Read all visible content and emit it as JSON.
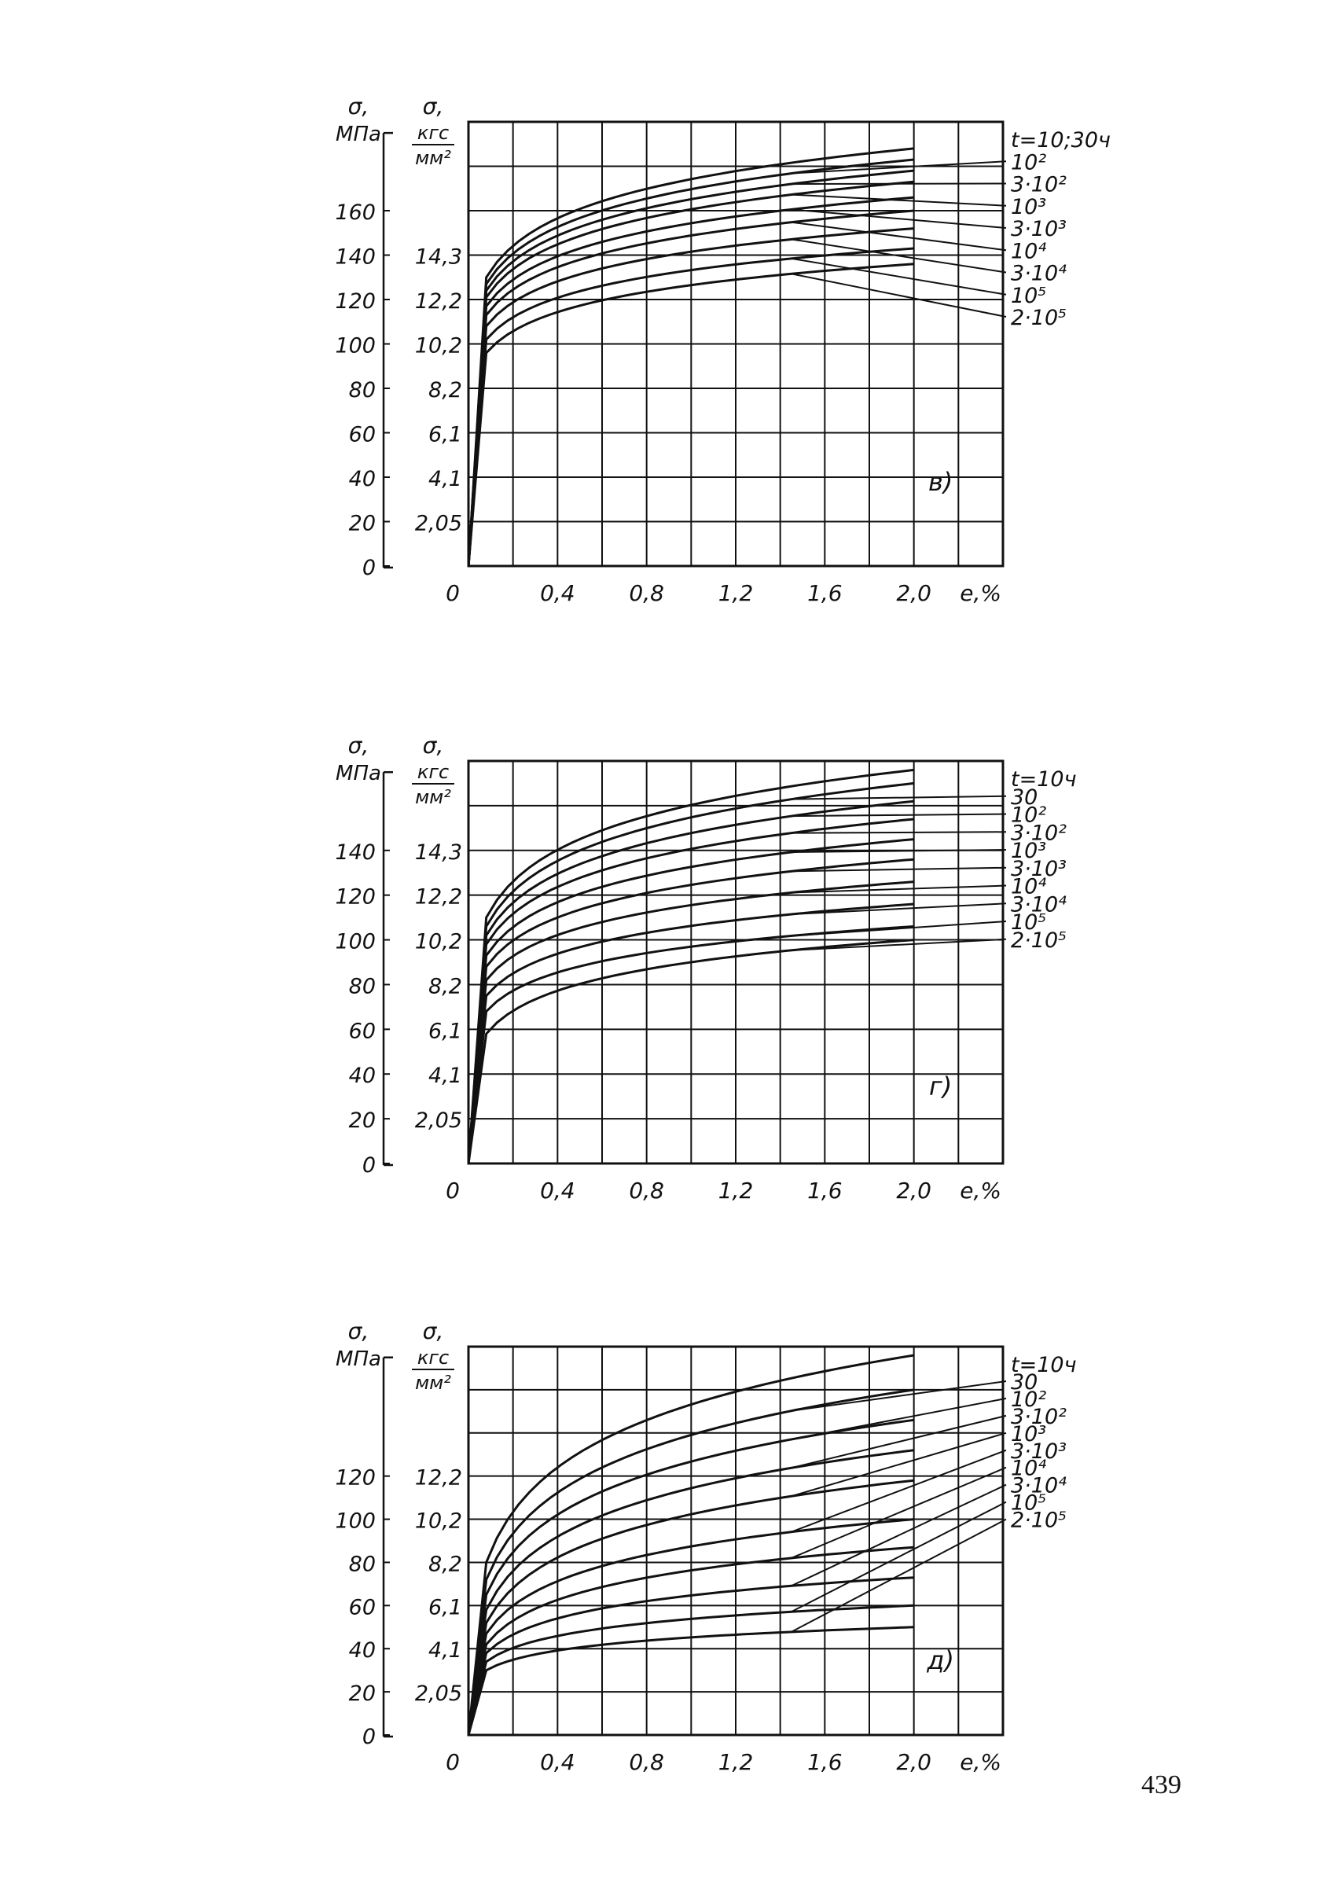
{
  "page": {
    "number": "439"
  },
  "colors": {
    "ink": "#111111",
    "paper": "#ffffff"
  },
  "chart_data": [
    {
      "type": "line",
      "panel_label": "в)",
      "xlabel": "е,%",
      "ylabel_si": [
        "σ,",
        "МПа"
      ],
      "ylabel_kgf": [
        "σ,",
        "кгс",
        "мм²"
      ],
      "xlim": [
        0,
        2.4
      ],
      "ylim": [
        0,
        200
      ],
      "x_ticks": [
        "0",
        "0,4",
        "0,8",
        "1,2",
        "1,6",
        "2,0"
      ],
      "y_ticks_si": [
        {
          "v": 0,
          "t": "0"
        },
        {
          "v": 20,
          "t": "20"
        },
        {
          "v": 40,
          "t": "40"
        },
        {
          "v": 60,
          "t": "60"
        },
        {
          "v": 80,
          "t": "80"
        },
        {
          "v": 100,
          "t": "100"
        },
        {
          "v": 120,
          "t": "120"
        },
        {
          "v": 140,
          "t": "140"
        },
        {
          "v": 160,
          "t": "160"
        }
      ],
      "y_ticks_kgf": [
        {
          "v": 20,
          "t": "2,05"
        },
        {
          "v": 40,
          "t": "4,1"
        },
        {
          "v": 60,
          "t": "6,1"
        },
        {
          "v": 80,
          "t": "8,2"
        },
        {
          "v": 100,
          "t": "10,2"
        },
        {
          "v": 120,
          "t": "12,2"
        },
        {
          "v": 140,
          "t": "14,3"
        }
      ],
      "grid": true,
      "legend_title": "t=10;30ч",
      "series": [
        {
          "name": "t=10;30ч",
          "y0": 130,
          "end": 188
        },
        {
          "name": "10²",
          "y0": 127,
          "end": 183
        },
        {
          "name": "3·10²",
          "y0": 124,
          "end": 178
        },
        {
          "name": "10³",
          "y0": 121,
          "end": 173
        },
        {
          "name": "3·10³",
          "y0": 117,
          "end": 166
        },
        {
          "name": "10⁴",
          "y0": 113,
          "end": 160
        },
        {
          "name": "3·10⁴",
          "y0": 108,
          "end": 152
        },
        {
          "name": "10⁵",
          "y0": 102,
          "end": 143
        },
        {
          "name": "2·10⁵",
          "y0": 96,
          "end": 136
        }
      ]
    },
    {
      "type": "line",
      "panel_label": "г)",
      "xlabel": "е,%",
      "ylabel_si": [
        "σ,",
        "МПа"
      ],
      "ylabel_kgf": [
        "σ,",
        "кгс",
        "мм²"
      ],
      "xlim": [
        0,
        2.4
      ],
      "ylim": [
        0,
        180
      ],
      "x_ticks": [
        "0",
        "0,4",
        "0,8",
        "1,2",
        "1,6",
        "2,0"
      ],
      "y_ticks_si": [
        {
          "v": 0,
          "t": "0"
        },
        {
          "v": 20,
          "t": "20"
        },
        {
          "v": 40,
          "t": "40"
        },
        {
          "v": 60,
          "t": "60"
        },
        {
          "v": 80,
          "t": "80"
        },
        {
          "v": 100,
          "t": "100"
        },
        {
          "v": 120,
          "t": "120"
        },
        {
          "v": 140,
          "t": "140"
        }
      ],
      "y_ticks_kgf": [
        {
          "v": 20,
          "t": "2,05"
        },
        {
          "v": 40,
          "t": "4,1"
        },
        {
          "v": 60,
          "t": "6,1"
        },
        {
          "v": 80,
          "t": "8,2"
        },
        {
          "v": 100,
          "t": "10,2"
        },
        {
          "v": 120,
          "t": "12,2"
        },
        {
          "v": 140,
          "t": "14,3"
        }
      ],
      "grid": true,
      "legend_title": "t=10ч",
      "series": [
        {
          "name": "t=10ч",
          "y0": 110,
          "end": 176
        },
        {
          "name": "30",
          "y0": 106,
          "end": 170
        },
        {
          "name": "10²",
          "y0": 102,
          "end": 162
        },
        {
          "name": "3·10²",
          "y0": 98,
          "end": 154
        },
        {
          "name": "10³",
          "y0": 93,
          "end": 145
        },
        {
          "name": "3·10³",
          "y0": 88,
          "end": 136
        },
        {
          "name": "10⁴",
          "y0": 82,
          "end": 126
        },
        {
          "name": "3·10⁴",
          "y0": 75,
          "end": 116
        },
        {
          "name": "10⁵",
          "y0": 68,
          "end": 106
        },
        {
          "name": "2·10⁵",
          "y0": 58,
          "end": 100
        }
      ]
    },
    {
      "type": "line",
      "panel_label": "д)",
      "xlabel": "е,%",
      "ylabel_si": [
        "σ,",
        "МПа"
      ],
      "ylabel_kgf": [
        "σ,",
        "кгс",
        "мм²"
      ],
      "xlim": [
        0,
        2.4
      ],
      "ylim": [
        0,
        180
      ],
      "x_ticks": [
        "0",
        "0,4",
        "0,8",
        "1,2",
        "1,6",
        "2,0"
      ],
      "y_ticks_si": [
        {
          "v": 0,
          "t": "0"
        },
        {
          "v": 20,
          "t": "20"
        },
        {
          "v": 40,
          "t": "40"
        },
        {
          "v": 60,
          "t": "60"
        },
        {
          "v": 80,
          "t": "80"
        },
        {
          "v": 100,
          "t": "100"
        },
        {
          "v": 120,
          "t": "120"
        }
      ],
      "y_ticks_kgf": [
        {
          "v": 20,
          "t": "2,05"
        },
        {
          "v": 40,
          "t": "4,1"
        },
        {
          "v": 60,
          "t": "6,1"
        },
        {
          "v": 80,
          "t": "8,2"
        },
        {
          "v": 100,
          "t": "10,2"
        },
        {
          "v": 120,
          "t": "12,2"
        }
      ],
      "grid": true,
      "legend_title": "t=10ч",
      "series": [
        {
          "name": "t=10ч",
          "y0": 80,
          "end": 176
        },
        {
          "name": "30",
          "y0": 72,
          "end": 160
        },
        {
          "name": "10²",
          "y0": 65,
          "end": 146
        },
        {
          "name": "3·10²",
          "y0": 58,
          "end": 132
        },
        {
          "name": "10³",
          "y0": 52,
          "end": 118
        },
        {
          "name": "3·10³",
          "y0": 47,
          "end": 100
        },
        {
          "name": "10⁴",
          "y0": 42,
          "end": 87
        },
        {
          "name": "3·10⁴",
          "y0": 38,
          "end": 73
        },
        {
          "name": "10⁵",
          "y0": 34,
          "end": 60
        },
        {
          "name": "2·10⁵",
          "y0": 30,
          "end": 50
        }
      ]
    }
  ]
}
